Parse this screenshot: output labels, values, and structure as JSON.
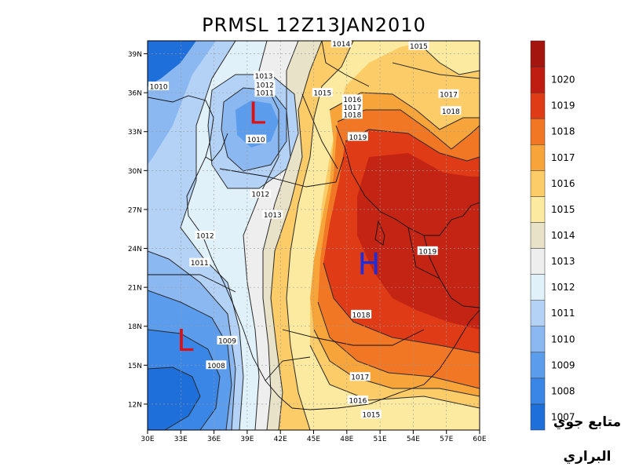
{
  "chart_data": {
    "type": "heatmap",
    "title": "PRMSL 12Z13JAN2010",
    "x_ticks": [
      "30E",
      "33E",
      "36E",
      "39E",
      "42E",
      "45E",
      "48E",
      "51E",
      "54E",
      "57E",
      "60E"
    ],
    "y_ticks": [
      "39N",
      "36N",
      "33N",
      "30N",
      "27N",
      "24N",
      "21N",
      "18N",
      "15N",
      "12N"
    ],
    "xlim": [
      30,
      60
    ],
    "ylim": [
      10,
      40
    ],
    "grid": true,
    "legend_position": "right",
    "colorbar": {
      "levels": [
        "1007",
        "1008",
        "1009",
        "1010",
        "1011",
        "1012",
        "1013",
        "1014",
        "1015",
        "1016",
        "1017",
        "1018",
        "1019",
        "1020"
      ],
      "colors": [
        "#1e6fd9",
        "#3a86e6",
        "#5b9cec",
        "#8bb8f1",
        "#b4d2f6",
        "#e1f1fa",
        "#eeeeee",
        "#e8e2c8",
        "#fbeaa0",
        "#fbcc68",
        "#f7a53a",
        "#f17724",
        "#df3b16",
        "#bf1d12"
      ]
    },
    "contour_labels": [
      {
        "label": "1014",
        "lon": 47.5,
        "lat": 39.8
      },
      {
        "label": "1015",
        "lon": 54.5,
        "lat": 39.6
      },
      {
        "label": "1013",
        "lon": 40.5,
        "lat": 37.3
      },
      {
        "label": "1012",
        "lon": 40.6,
        "lat": 36.6
      },
      {
        "label": "1011",
        "lon": 40.6,
        "lat": 36.0
      },
      {
        "label": "1010",
        "lon": 31.0,
        "lat": 36.5
      },
      {
        "label": "1015",
        "lon": 45.8,
        "lat": 36.0
      },
      {
        "label": "1016",
        "lon": 48.5,
        "lat": 35.5
      },
      {
        "label": "1017",
        "lon": 48.5,
        "lat": 34.9
      },
      {
        "label": "1018",
        "lon": 48.5,
        "lat": 34.3
      },
      {
        "label": "1017",
        "lon": 57.2,
        "lat": 35.9
      },
      {
        "label": "1018",
        "lon": 57.4,
        "lat": 34.6
      },
      {
        "label": "1019",
        "lon": 49.0,
        "lat": 32.6
      },
      {
        "label": "1010",
        "lon": 39.8,
        "lat": 32.4
      },
      {
        "label": "1012",
        "lon": 40.2,
        "lat": 28.2
      },
      {
        "label": "1013",
        "lon": 41.3,
        "lat": 26.6
      },
      {
        "label": "1012",
        "lon": 35.2,
        "lat": 25.0
      },
      {
        "label": "1011",
        "lon": 34.7,
        "lat": 22.9
      },
      {
        "label": "1019",
        "lon": 55.3,
        "lat": 23.8
      },
      {
        "label": "1018",
        "lon": 49.3,
        "lat": 18.9
      },
      {
        "label": "1009",
        "lon": 37.2,
        "lat": 16.9
      },
      {
        "label": "1008",
        "lon": 36.2,
        "lat": 15.0
      },
      {
        "label": "1017",
        "lon": 49.2,
        "lat": 14.1
      },
      {
        "label": "1016",
        "lon": 49.0,
        "lat": 12.3
      },
      {
        "label": "1015",
        "lon": 50.2,
        "lat": 11.2
      }
    ],
    "pressure_centers": [
      {
        "label": "L",
        "lon": 39.9,
        "lat": 34.4,
        "color": "#e01010"
      },
      {
        "label": "H",
        "lon": 50.0,
        "lat": 22.8,
        "color": "#1a2ee0"
      },
      {
        "label": "L",
        "lon": 33.4,
        "lat": 16.9,
        "color": "#e01010"
      }
    ]
  },
  "signature": {
    "line1": "متابع جوي",
    "line2": "البراري"
  }
}
